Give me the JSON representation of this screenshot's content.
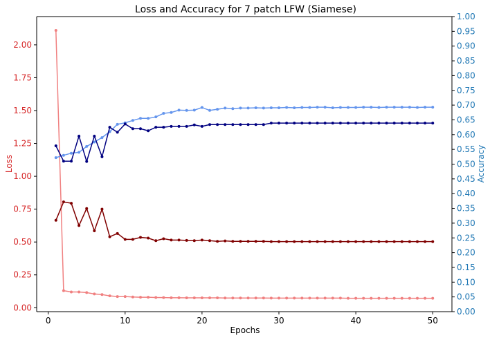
{
  "chart_data": {
    "type": "line",
    "title": "Loss and Accuracy for 7 patch LFW (Siamese)",
    "xlabel": "Epochs",
    "ylabel_left": "Loss",
    "ylabel_right": "Accuracy",
    "xlim": [
      -1.5,
      52.5
    ],
    "ylim_left": [
      -0.03,
      2.215
    ],
    "ylim_right": [
      0.0,
      1.0
    ],
    "x_ticks": [
      0,
      10,
      20,
      30,
      40,
      50
    ],
    "y_left_ticks": [
      0.0,
      0.25,
      0.5,
      0.75,
      1.0,
      1.25,
      1.5,
      1.75,
      2.0
    ],
    "y_left_tick_labels": [
      "0.00",
      "0.25",
      "0.50",
      "0.75",
      "1.00",
      "1.25",
      "1.50",
      "1.75",
      "2.00"
    ],
    "y_right_ticks": [
      0.0,
      0.05,
      0.1,
      0.15,
      0.2,
      0.25,
      0.3,
      0.35,
      0.4,
      0.45,
      0.5,
      0.55,
      0.6,
      0.65,
      0.7,
      0.75,
      0.8,
      0.85,
      0.9,
      0.95,
      1.0
    ],
    "y_right_tick_labels": [
      "0.00",
      "0.05",
      "0.10",
      "0.15",
      "0.20",
      "0.25",
      "0.30",
      "0.35",
      "0.40",
      "0.45",
      "0.50",
      "0.55",
      "0.60",
      "0.65",
      "0.70",
      "0.75",
      "0.80",
      "0.85",
      "0.90",
      "0.95",
      "1.00"
    ],
    "x": [
      1,
      2,
      3,
      4,
      5,
      6,
      7,
      8,
      9,
      10,
      11,
      12,
      13,
      14,
      15,
      16,
      17,
      18,
      19,
      20,
      21,
      22,
      23,
      24,
      25,
      26,
      27,
      28,
      29,
      30,
      31,
      32,
      33,
      34,
      35,
      36,
      37,
      38,
      39,
      40,
      41,
      42,
      43,
      44,
      45,
      46,
      47,
      48,
      49,
      50
    ],
    "series": [
      {
        "axis": "left",
        "color": "#f08080",
        "values": [
          2.11,
          0.13,
          0.12,
          0.12,
          0.115,
          0.105,
          0.1,
          0.09,
          0.085,
          0.085,
          0.082,
          0.08,
          0.08,
          0.078,
          0.077,
          0.076,
          0.076,
          0.075,
          0.075,
          0.075,
          0.075,
          0.075,
          0.074,
          0.074,
          0.074,
          0.074,
          0.074,
          0.074,
          0.073,
          0.073,
          0.073,
          0.073,
          0.073,
          0.073,
          0.073,
          0.073,
          0.073,
          0.073,
          0.072,
          0.072,
          0.072,
          0.072,
          0.072,
          0.072,
          0.072,
          0.072,
          0.072,
          0.072,
          0.072,
          0.072
        ]
      },
      {
        "axis": "left",
        "color": "#800000",
        "values": [
          0.665,
          0.805,
          0.795,
          0.625,
          0.755,
          0.585,
          0.75,
          0.54,
          0.565,
          0.52,
          0.52,
          0.535,
          0.53,
          0.51,
          0.525,
          0.515,
          0.515,
          0.512,
          0.51,
          0.515,
          0.51,
          0.505,
          0.508,
          0.505,
          0.505,
          0.505,
          0.505,
          0.505,
          0.503,
          0.503,
          0.503,
          0.503,
          0.503,
          0.503,
          0.503,
          0.503,
          0.503,
          0.503,
          0.503,
          0.503,
          0.503,
          0.503,
          0.503,
          0.503,
          0.503,
          0.503,
          0.503,
          0.503,
          0.503,
          0.503
        ]
      },
      {
        "axis": "right",
        "color": "#6495ed",
        "values": [
          0.522,
          0.53,
          0.537,
          0.54,
          0.56,
          0.575,
          0.59,
          0.61,
          0.635,
          0.64,
          0.648,
          0.655,
          0.655,
          0.66,
          0.672,
          0.675,
          0.683,
          0.682,
          0.683,
          0.692,
          0.682,
          0.686,
          0.69,
          0.688,
          0.69,
          0.69,
          0.691,
          0.69,
          0.691,
          0.691,
          0.692,
          0.691,
          0.692,
          0.692,
          0.693,
          0.693,
          0.691,
          0.692,
          0.692,
          0.692,
          0.693,
          0.693,
          0.692,
          0.693,
          0.693,
          0.693,
          0.693,
          0.692,
          0.693,
          0.693
        ]
      },
      {
        "axis": "right",
        "color": "#000080",
        "values": [
          0.562,
          0.51,
          0.51,
          0.595,
          0.509,
          0.595,
          0.525,
          0.625,
          0.608,
          0.636,
          0.62,
          0.62,
          0.613,
          0.625,
          0.625,
          0.628,
          0.628,
          0.628,
          0.633,
          0.628,
          0.634,
          0.634,
          0.634,
          0.634,
          0.634,
          0.634,
          0.634,
          0.634,
          0.639,
          0.639,
          0.639,
          0.639,
          0.639,
          0.639,
          0.639,
          0.639,
          0.639,
          0.639,
          0.639,
          0.639,
          0.639,
          0.639,
          0.639,
          0.639,
          0.639,
          0.639,
          0.639,
          0.639,
          0.639,
          0.639
        ]
      }
    ],
    "colors": {
      "left_axis": "#d62728",
      "right_axis": "#1f77b4",
      "frame": "#000000"
    },
    "grid": false,
    "legend": "none"
  }
}
